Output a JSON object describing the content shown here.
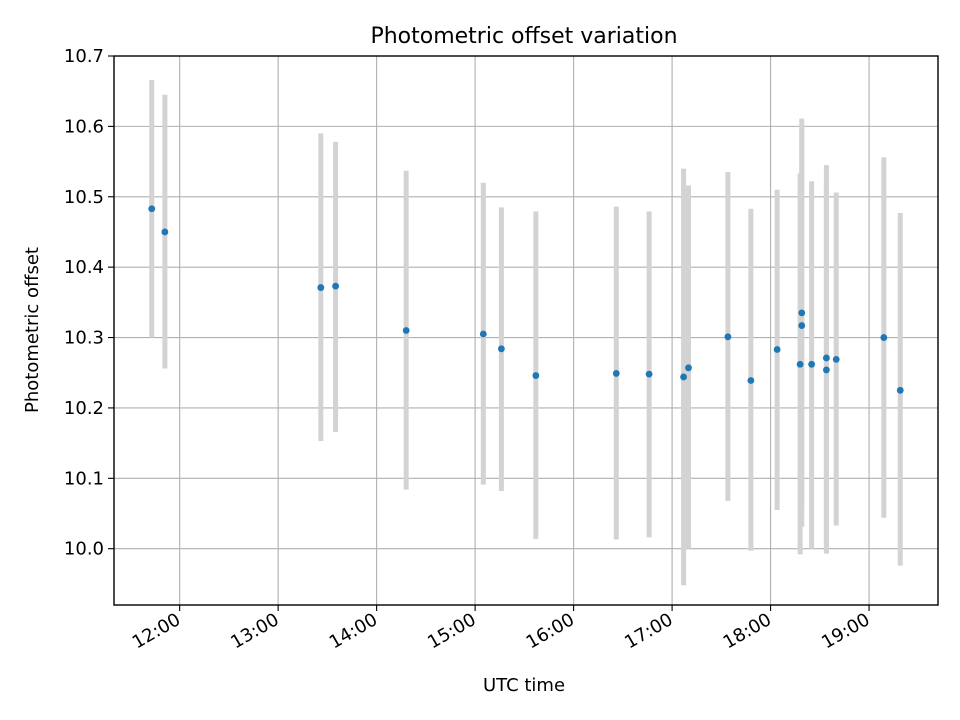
{
  "chart_data": {
    "type": "scatter",
    "title": "Photometric offset variation",
    "xlabel": "UTC time",
    "ylabel": "Photometric offset",
    "x_ticks": [
      "12:00",
      "13:00",
      "14:00",
      "15:00",
      "16:00",
      "17:00",
      "18:00",
      "19:00"
    ],
    "y_ticks": [
      "10.0",
      "10.1",
      "10.2",
      "10.3",
      "10.4",
      "10.5",
      "10.6",
      "10.7"
    ],
    "xlim": [
      "11:20",
      "19:42"
    ],
    "ylim": [
      9.92,
      10.7
    ],
    "grid": true,
    "point_color": "#1f77b4",
    "errorbar_color": "#d3d3d3",
    "points": [
      {
        "time": "11:43",
        "y": 10.483,
        "lo": 10.3,
        "hi": 10.666
      },
      {
        "time": "11:51",
        "y": 10.45,
        "lo": 10.256,
        "hi": 10.645
      },
      {
        "time": "13:26",
        "y": 10.371,
        "lo": 10.153,
        "hi": 10.59
      },
      {
        "time": "13:35",
        "y": 10.373,
        "lo": 10.166,
        "hi": 10.578
      },
      {
        "time": "14:18",
        "y": 10.31,
        "lo": 10.084,
        "hi": 10.537
      },
      {
        "time": "15:05",
        "y": 10.305,
        "lo": 10.091,
        "hi": 10.52
      },
      {
        "time": "15:16",
        "y": 10.284,
        "lo": 10.082,
        "hi": 10.485
      },
      {
        "time": "15:37",
        "y": 10.246,
        "lo": 10.014,
        "hi": 10.479
      },
      {
        "time": "16:26",
        "y": 10.249,
        "lo": 10.013,
        "hi": 10.486
      },
      {
        "time": "16:46",
        "y": 10.248,
        "lo": 10.016,
        "hi": 10.479
      },
      {
        "time": "17:07",
        "y": 10.244,
        "lo": 9.948,
        "hi": 10.54
      },
      {
        "time": "17:10",
        "y": 10.257,
        "lo": 10.0,
        "hi": 10.516
      },
      {
        "time": "17:34",
        "y": 10.301,
        "lo": 10.068,
        "hi": 10.535
      },
      {
        "time": "17:48",
        "y": 10.239,
        "lo": 9.997,
        "hi": 10.483
      },
      {
        "time": "18:04",
        "y": 10.283,
        "lo": 10.055,
        "hi": 10.51
      },
      {
        "time": "18:18",
        "y": 10.262,
        "lo": 9.992,
        "hi": 10.533
      },
      {
        "time": "18:19",
        "y": 10.335,
        "lo": 10.06,
        "hi": 10.611
      },
      {
        "time": "18:19",
        "y": 10.317,
        "lo": 10.031,
        "hi": 10.597
      },
      {
        "time": "18:25",
        "y": 10.262,
        "lo": 10.0,
        "hi": 10.522
      },
      {
        "time": "18:34",
        "y": 10.271,
        "lo": 10.0,
        "hi": 10.545
      },
      {
        "time": "18:34",
        "y": 10.254,
        "lo": 9.993,
        "hi": 10.516
      },
      {
        "time": "18:40",
        "y": 10.269,
        "lo": 10.033,
        "hi": 10.506
      },
      {
        "time": "19:09",
        "y": 10.3,
        "lo": 10.044,
        "hi": 10.556
      },
      {
        "time": "19:19",
        "y": 10.225,
        "lo": 9.976,
        "hi": 10.477
      }
    ]
  }
}
